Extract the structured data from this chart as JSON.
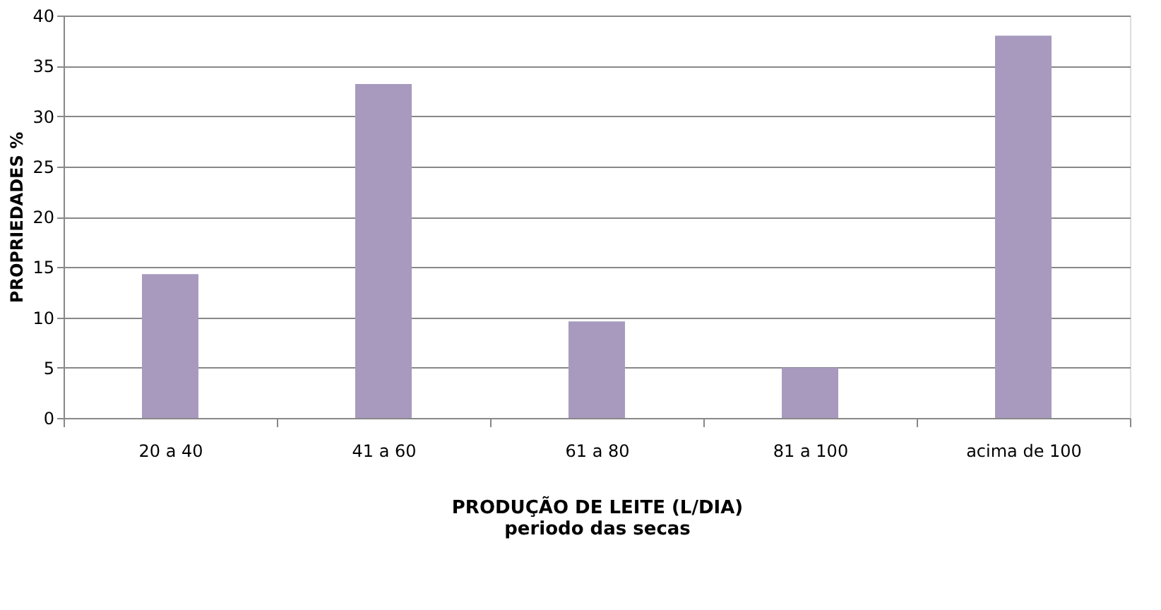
{
  "chart_data": {
    "type": "bar",
    "categories": [
      "20 a 40",
      "41 a 60",
      "61 a 80",
      "81 a 100",
      "acima de 100"
    ],
    "values": [
      14.3,
      33.2,
      9.6,
      5.0,
      38.0
    ],
    "color": "#a89abe",
    "ylabel": "PROPRIEDADES %",
    "xlabel": "PRODUÇÃO DE LEITE (L/DIA)",
    "annotations": [
      "periodo das secas"
    ],
    "ylim": [
      0,
      40
    ],
    "yticks": [
      0,
      5,
      10,
      15,
      20,
      25,
      30,
      35,
      40
    ],
    "grid": "y"
  }
}
